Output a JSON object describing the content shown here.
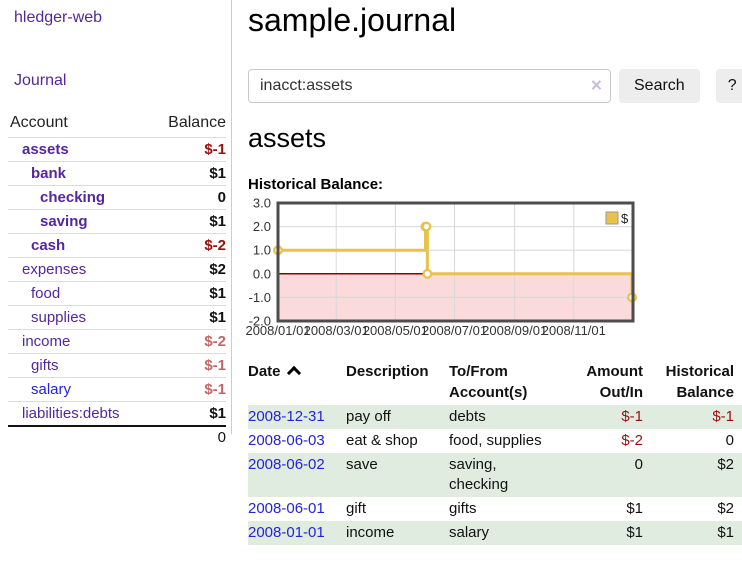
{
  "app_title": "hledger-web",
  "sidebar": {
    "journal_link": "Journal",
    "table": {
      "account_header": "Account",
      "balance_header": "Balance",
      "rows": [
        {
          "name": "assets",
          "balance": "$-1",
          "depth": 1,
          "in_query": true
        },
        {
          "name": "bank",
          "balance": "$1",
          "depth": 2,
          "in_query": true
        },
        {
          "name": "checking",
          "balance": "0",
          "depth": 3,
          "in_query": true
        },
        {
          "name": "saving",
          "balance": "$1",
          "depth": 3,
          "in_query": true
        },
        {
          "name": "cash",
          "balance": "$-2",
          "depth": 2,
          "in_query": true
        },
        {
          "name": "expenses",
          "balance": "$2",
          "depth": 1,
          "in_query": false
        },
        {
          "name": "food",
          "balance": "$1",
          "depth": 2,
          "in_query": false
        },
        {
          "name": "supplies",
          "balance": "$1",
          "depth": 2,
          "in_query": false
        },
        {
          "name": "income",
          "balance": "$-2",
          "depth": 1,
          "in_query": false
        },
        {
          "name": "gifts",
          "balance": "$-1",
          "depth": 2,
          "in_query": false
        },
        {
          "name": "salary",
          "balance": "$-1",
          "depth": 2,
          "in_query": false,
          "visited": false
        },
        {
          "name": "liabilities:debts",
          "balance": "$1",
          "depth": 1,
          "in_query": false
        }
      ],
      "total": "0"
    }
  },
  "main": {
    "title": "sample.journal",
    "search": {
      "value": "inacct:assets",
      "clear_label": "×",
      "button": "Search",
      "help": "?"
    },
    "heading": "assets",
    "chart_label": "Historical Balance:",
    "register": {
      "columns": [
        {
          "label": "Date",
          "align": "left",
          "sort_icon": "caret-up"
        },
        {
          "label": "Description",
          "align": "left"
        },
        {
          "label": "To/From Account(s)",
          "align": "left"
        },
        {
          "label": "Amount Out/In",
          "align": "right"
        },
        {
          "label": "Historical Balance",
          "align": "right"
        }
      ],
      "rows": [
        {
          "date": "2008-12-31",
          "description": "pay off",
          "accounts": "debts",
          "amount": "$-1",
          "balance": "$-1"
        },
        {
          "date": "2008-06-03",
          "description": "eat & shop",
          "accounts": "food, supplies",
          "amount": "$-2",
          "balance": "0"
        },
        {
          "date": "2008-06-02",
          "description": "save",
          "accounts": "saving, checking",
          "amount": "0",
          "balance": "$2"
        },
        {
          "date": "2008-06-01",
          "description": "gift",
          "accounts": "gifts",
          "amount": "$1",
          "balance": "$2"
        },
        {
          "date": "2008-01-01",
          "description": "income",
          "accounts": "salary",
          "amount": "$1",
          "balance": "$1"
        }
      ]
    }
  },
  "chart_data": {
    "type": "line",
    "title": "Historical Balance",
    "series": [
      {
        "name": "$",
        "step": true,
        "points": [
          [
            "2008-01-01",
            1
          ],
          [
            "2008-06-01",
            2
          ],
          [
            "2008-06-02",
            2
          ],
          [
            "2008-06-03",
            0
          ],
          [
            "2008-12-31",
            -1
          ]
        ]
      }
    ],
    "x_domain": [
      "2008-01-01",
      "2009-01-01"
    ],
    "ylim": [
      -2,
      3
    ],
    "yticks": [
      3,
      2,
      1,
      0,
      -1,
      -2
    ],
    "ytick_labels": [
      "3.0",
      "2.0",
      "1.0",
      "0.0",
      "-1.0",
      "-2.0"
    ],
    "xticks": [
      {
        "date": "2008-01-01",
        "label": "2008/01/01"
      },
      {
        "date": "2008-03-01",
        "label": "2008/03/01"
      },
      {
        "date": "2008-05-01",
        "label": "2008/05/01"
      },
      {
        "date": "2008-07-01",
        "label": "2008/07/01"
      },
      {
        "date": "2008-09-01",
        "label": "2008/09/01"
      },
      {
        "date": "2008-11-01",
        "label": "2008/11/01"
      }
    ],
    "legend": {
      "label": "$",
      "position": "top-right"
    },
    "grid": true,
    "colors": {
      "line": "#e8c24a",
      "marker_fill": "#ffffff",
      "negative_fill": "#fbdadb",
      "zero_line": "#8b0000",
      "grid": "#d8d8d8",
      "frame": "#4d4d4d"
    }
  },
  "colors": {
    "link_purple": "#54279c",
    "link_blue": "#2424d6",
    "negative_strong": "#9b0f0f",
    "negative_muted": "#c06868",
    "row_green": "#e1ece1",
    "button_bg": "#ededed"
  }
}
